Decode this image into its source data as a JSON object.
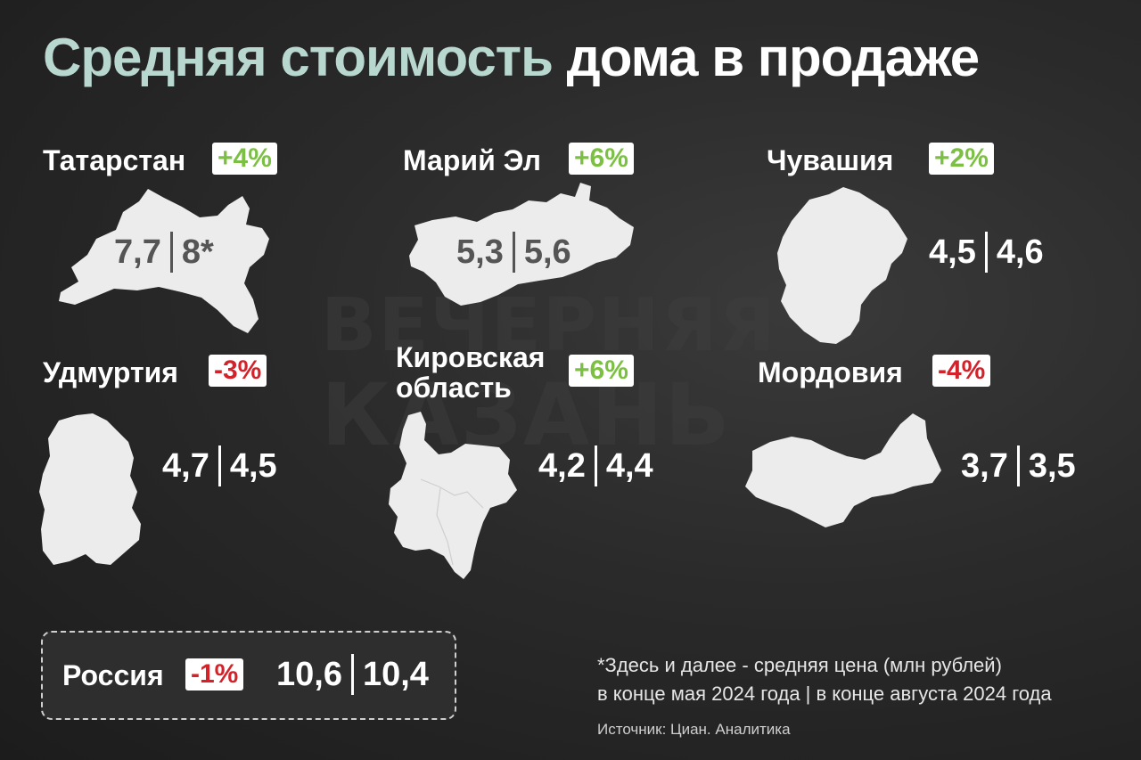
{
  "title": {
    "accent": "Средняя стоимость",
    "main": "дома в продаже"
  },
  "watermark": {
    "line1": "ВЕЧЕРНЯЯ",
    "line2": "КАЗАНЬ"
  },
  "regions": {
    "tatarstan": {
      "name": "Татарстан",
      "change": "+4%",
      "value_may": "7,7",
      "value_aug": "8*"
    },
    "mari_el": {
      "name": "Марий Эл",
      "change": "+6%",
      "value_may": "5,3",
      "value_aug": "5,6"
    },
    "chuvashia": {
      "name": "Чувашия",
      "change": "+2%",
      "value_may": "4,5",
      "value_aug": "4,6"
    },
    "udmurtia": {
      "name": "Удмуртия",
      "change": "-3%",
      "value_may": "4,7",
      "value_aug": "4,5"
    },
    "kirov": {
      "name_line1": "Кировская",
      "name_line2": "область",
      "change": "+6%",
      "value_may": "4,2",
      "value_aug": "4,4"
    },
    "mordovia": {
      "name": "Мордовия",
      "change": "-4%",
      "value_may": "3,7",
      "value_aug": "3,5"
    }
  },
  "russia": {
    "name": "Россия",
    "change": "-1%",
    "value_may": "10,6",
    "value_aug": "10,4"
  },
  "footnote": {
    "line1": "*Здесь и далее - средняя цена (млн рублей)",
    "line2": "в конце мая 2024 года | в конце августа 2024 года"
  },
  "source": "Источник: Циан. Аналитика",
  "colors": {
    "accent": "#b8d8cf",
    "up": "#7cc043",
    "down": "#d3222a",
    "map": "#ececec"
  }
}
